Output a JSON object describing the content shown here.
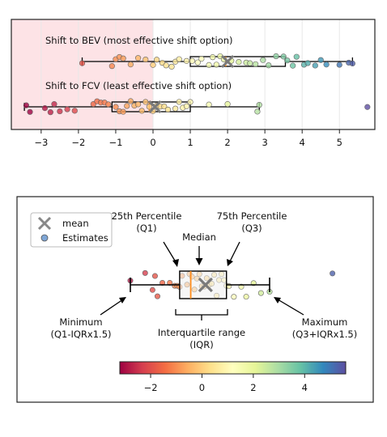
{
  "chart_data": [
    {
      "type": "scatter",
      "subtype": "box-and-jitter",
      "xlim": [
        -3.8,
        5.95
      ],
      "xticks": [
        -3,
        -2,
        -1,
        0,
        1,
        2,
        3,
        4,
        5
      ],
      "xtick_labels": [
        "−3",
        "−2",
        "−1",
        "0",
        "1",
        "2",
        "3",
        "4",
        "5"
      ],
      "grid": "vertical",
      "shaded_region": {
        "from": -3.8,
        "to": 0,
        "color": "#fde3e6"
      },
      "color_scale": {
        "min": -3.2,
        "max": 5.6,
        "colors": [
          "#9e0142",
          "#d53e4f",
          "#f46d43",
          "#fdae61",
          "#fee08b",
          "#ffffbf",
          "#e6f598",
          "#abdda4",
          "#66c2a5",
          "#3288bd",
          "#5e4fa2"
        ]
      },
      "series": [
        {
          "name": "Shift to BEV (most effective shift option)",
          "whisker_low": -1.9,
          "q1": 1.0,
          "median": 1.95,
          "q3": 3.55,
          "whisker_high": 5.35,
          "mean": 2.0,
          "points": [
            -1.9,
            -1.1,
            -1.0,
            -0.9,
            -0.8,
            -0.6,
            -0.4,
            -0.2,
            0.0,
            0.1,
            0.25,
            0.35,
            0.5,
            0.6,
            0.7,
            0.9,
            1.05,
            1.2,
            1.3,
            1.5,
            1.6,
            1.7,
            1.8,
            1.9,
            2.1,
            2.3,
            2.5,
            2.6,
            2.75,
            2.95,
            3.1,
            3.3,
            3.5,
            3.6,
            3.75,
            3.85,
            4.05,
            4.15,
            4.35,
            4.5,
            4.65,
            5.0,
            5.25,
            5.35
          ]
        },
        {
          "name": "Shift to FCV (least effective shift option)",
          "whisker_low": -3.45,
          "q1": -1.1,
          "median": -0.1,
          "q3": 1.0,
          "whisker_high": 2.85,
          "mean": 0.05,
          "points": [
            -3.4,
            -3.3,
            -2.9,
            -2.75,
            -2.65,
            -2.5,
            -2.3,
            -2.1,
            -1.6,
            -1.5,
            -1.4,
            -1.3,
            -1.2,
            -1.0,
            -0.9,
            -0.8,
            -0.7,
            -0.6,
            -0.5,
            -0.4,
            -0.3,
            -0.2,
            -0.1,
            0.0,
            0.1,
            0.2,
            0.3,
            0.4,
            0.6,
            0.7,
            0.8,
            0.9,
            1.0,
            1.5,
            2.0,
            2.8,
            2.85,
            5.75
          ]
        }
      ]
    },
    {
      "type": "legend-diagram",
      "legend": [
        {
          "label": "mean",
          "marker": "x"
        },
        {
          "label": "Estimates",
          "marker": "circle"
        }
      ],
      "annotations": {
        "q1": "25th Percentile\n(Q1)",
        "median": "Median",
        "q3": "75th Percentile\n(Q3)",
        "min": "Minimum\n(Q1-IQRx1.5)",
        "max": "Maximum\n(Q3+IQRx1.5)",
        "iqr": "Interquartile range\n(IQR)"
      },
      "colorbar": {
        "xlim": [
          -3.2,
          5.6
        ],
        "ticks": [
          -2,
          0,
          2,
          4
        ],
        "tick_labels": [
          "−2",
          "0",
          "2",
          "4"
        ]
      },
      "example_box": {
        "whisker_low": -2.9,
        "q1": -0.9,
        "median": -0.45,
        "q3": 1.0,
        "whisker_high": 2.75,
        "mean": 0.15
      },
      "example_points": [
        -2.9,
        -2.3,
        -2.0,
        -1.9,
        -1.8,
        -1.6,
        -1.3,
        -1.1,
        -1.0,
        -0.9,
        -0.8,
        -0.6,
        -0.5,
        -0.4,
        -0.3,
        -0.2,
        -0.1,
        0.0,
        0.1,
        0.2,
        0.3,
        0.4,
        0.5,
        0.6,
        0.7,
        0.8,
        0.9,
        1.0,
        1.1,
        1.3,
        1.6,
        1.8,
        2.1,
        2.4,
        2.75,
        5.3
      ]
    }
  ]
}
